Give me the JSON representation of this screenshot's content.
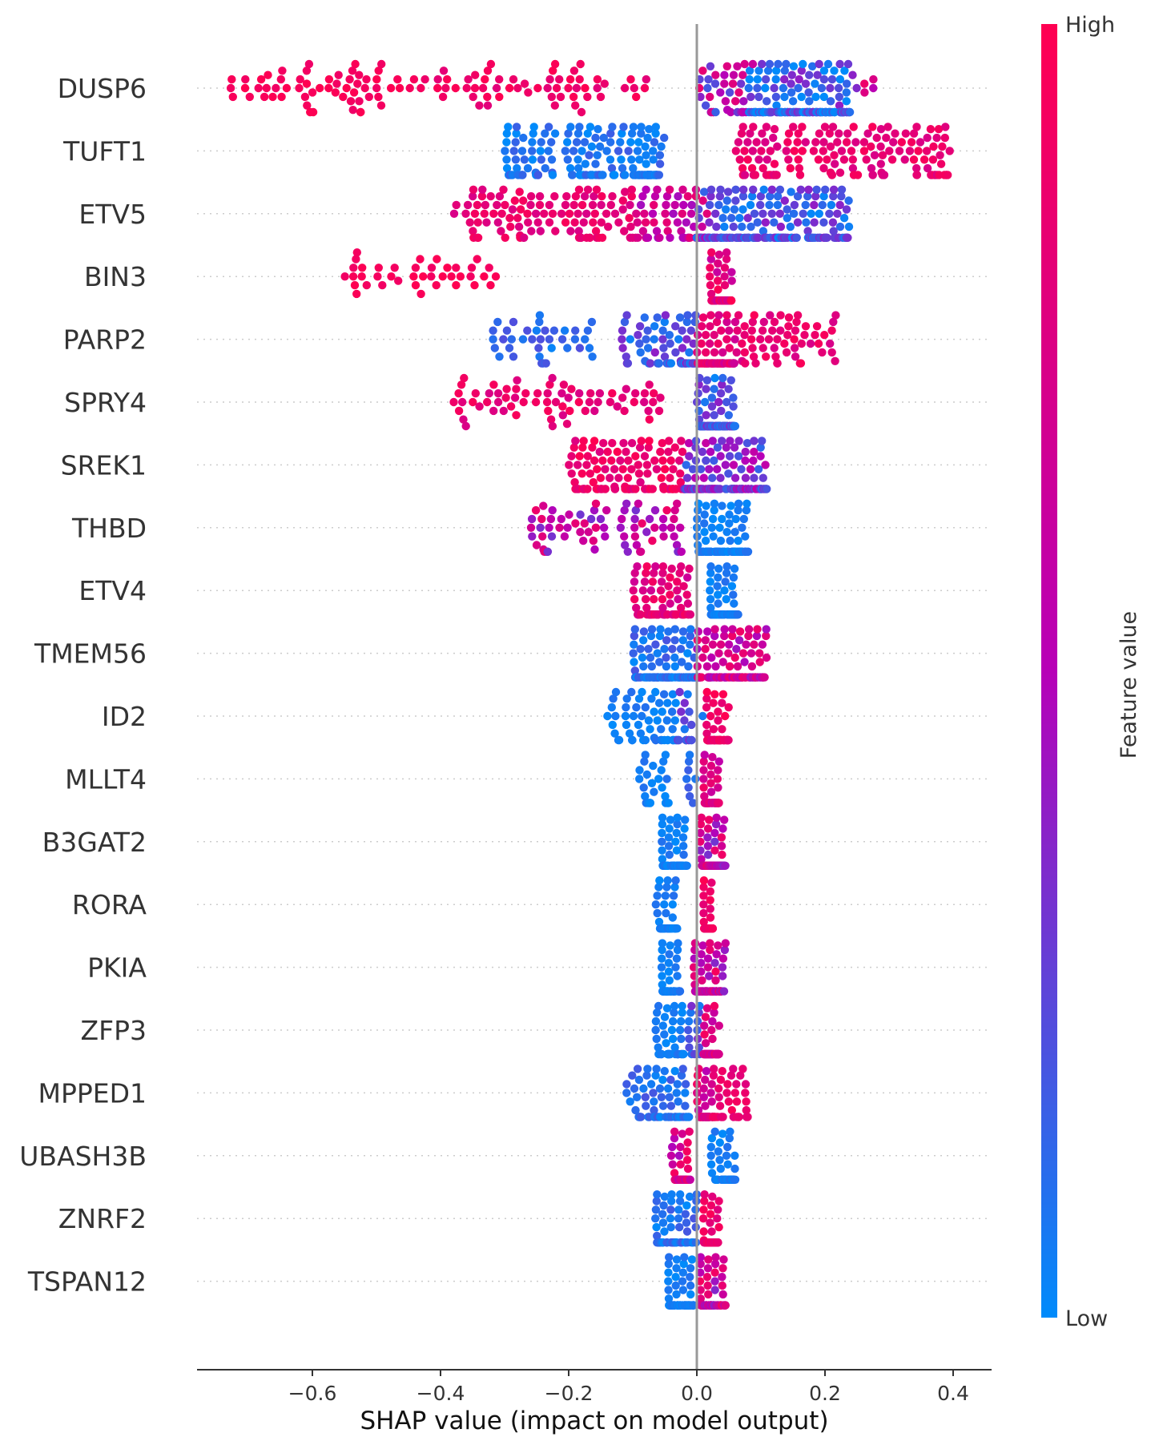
{
  "chart_data": {
    "type": "scatter",
    "subtype": "shap-beeswarm",
    "xlabel": "SHAP value (impact on model output)",
    "xlim": [
      -0.78,
      0.46
    ],
    "xticks": [
      -0.6,
      -0.4,
      -0.2,
      0.0,
      0.2,
      0.4
    ],
    "xtick_labels": [
      "−0.6",
      "−0.4",
      "−0.2",
      "0.0",
      "0.2",
      "0.4"
    ],
    "colorbar": {
      "label": "Feature value",
      "high_label": "High",
      "low_label": "Low",
      "low_color": "#008bfb",
      "high_color": "#ff0051",
      "mid_color": "#b700b7"
    },
    "zero_line_color": "#999999",
    "grid": false,
    "features": [
      {
        "name": "DUSP6",
        "segments": [
          {
            "x0": -0.73,
            "x1": -0.44,
            "n": 60,
            "fv": 0.95,
            "fvv": 0.06
          },
          {
            "x0": -0.44,
            "x1": -0.07,
            "n": 60,
            "fv": 0.9,
            "fvv": 0.1
          },
          {
            "x0": 0.0,
            "x1": 0.09,
            "n": 40,
            "fv": 0.5,
            "fvv": 0.35
          },
          {
            "x0": 0.08,
            "x1": 0.24,
            "n": 170,
            "fv": 0.15,
            "fvv": 0.25
          },
          {
            "x0": 0.24,
            "x1": 0.28,
            "n": 6,
            "fv": 0.6,
            "fvv": 0.3
          }
        ]
      },
      {
        "name": "TUFT1",
        "segments": [
          {
            "x0": -0.3,
            "x1": -0.05,
            "n": 140,
            "fv": 0.08,
            "fvv": 0.1
          },
          {
            "x0": -0.1,
            "x1": -0.06,
            "n": 40,
            "fv": 0.05,
            "fvv": 0.05
          },
          {
            "x0": 0.06,
            "x1": 0.4,
            "n": 150,
            "fv": 0.85,
            "fvv": 0.12
          }
        ]
      },
      {
        "name": "ETV5",
        "segments": [
          {
            "x0": -0.38,
            "x1": -0.1,
            "n": 110,
            "fv": 0.85,
            "fvv": 0.12
          },
          {
            "x0": -0.1,
            "x1": 0.02,
            "n": 60,
            "fv": 0.65,
            "fvv": 0.2
          },
          {
            "x0": 0.0,
            "x1": 0.24,
            "n": 220,
            "fv": 0.2,
            "fvv": 0.2
          }
        ]
      },
      {
        "name": "BIN3",
        "segments": [
          {
            "x0": -0.55,
            "x1": -0.31,
            "n": 40,
            "fv": 0.95,
            "fvv": 0.05
          },
          {
            "x0": 0.02,
            "x1": 0.055,
            "n": 80,
            "fv": 0.8,
            "fvv": 0.2
          }
        ]
      },
      {
        "name": "PARP2",
        "segments": [
          {
            "x0": -0.33,
            "x1": -0.16,
            "n": 40,
            "fv": 0.12,
            "fvv": 0.1
          },
          {
            "x0": -0.12,
            "x1": 0.0,
            "n": 80,
            "fv": 0.2,
            "fvv": 0.2
          },
          {
            "x0": 0.0,
            "x1": 0.06,
            "n": 110,
            "fv": 0.8,
            "fvv": 0.15
          },
          {
            "x0": 0.06,
            "x1": 0.22,
            "n": 60,
            "fv": 0.85,
            "fvv": 0.12
          }
        ]
      },
      {
        "name": "SPRY4",
        "segments": [
          {
            "x0": -0.38,
            "x1": -0.05,
            "n": 70,
            "fv": 0.85,
            "fvv": 0.12
          },
          {
            "x0": 0.0,
            "x1": 0.06,
            "n": 170,
            "fv": 0.2,
            "fvv": 0.2
          }
        ]
      },
      {
        "name": "SREK1",
        "segments": [
          {
            "x0": -0.2,
            "x1": -0.02,
            "n": 130,
            "fv": 0.88,
            "fvv": 0.12
          },
          {
            "x0": -0.02,
            "x1": 0.11,
            "n": 170,
            "fv": 0.35,
            "fvv": 0.25
          }
        ]
      },
      {
        "name": "THBD",
        "segments": [
          {
            "x0": -0.26,
            "x1": -0.14,
            "n": 40,
            "fv": 0.6,
            "fvv": 0.3
          },
          {
            "x0": -0.12,
            "x1": -0.02,
            "n": 35,
            "fv": 0.6,
            "fvv": 0.3
          },
          {
            "x0": 0.0,
            "x1": 0.08,
            "n": 120,
            "fv": 0.05,
            "fvv": 0.05
          }
        ]
      },
      {
        "name": "ETV4",
        "segments": [
          {
            "x0": -0.1,
            "x1": -0.01,
            "n": 90,
            "fv": 0.8,
            "fvv": 0.15
          },
          {
            "x0": 0.02,
            "x1": 0.065,
            "n": 110,
            "fv": 0.05,
            "fvv": 0.05
          }
        ]
      },
      {
        "name": "TMEM56",
        "segments": [
          {
            "x0": -0.1,
            "x1": 0.0,
            "n": 130,
            "fv": 0.1,
            "fvv": 0.1
          },
          {
            "x0": 0.0,
            "x1": 0.11,
            "n": 140,
            "fv": 0.65,
            "fvv": 0.25
          }
        ]
      },
      {
        "name": "ID2",
        "segments": [
          {
            "x0": -0.14,
            "x1": -0.03,
            "n": 60,
            "fv": 0.05,
            "fvv": 0.05
          },
          {
            "x0": -0.03,
            "x1": 0.01,
            "n": 20,
            "fv": 0.2,
            "fvv": 0.15
          },
          {
            "x0": 0.015,
            "x1": 0.05,
            "n": 80,
            "fv": 0.9,
            "fvv": 0.1
          }
        ]
      },
      {
        "name": "MLLT4",
        "segments": [
          {
            "x0": -0.09,
            "x1": -0.04,
            "n": 30,
            "fv": 0.05,
            "fvv": 0.05
          },
          {
            "x0": -0.02,
            "x1": 0.0,
            "n": 8,
            "fv": 0.1,
            "fvv": 0.08
          },
          {
            "x0": 0.01,
            "x1": 0.035,
            "n": 90,
            "fv": 0.75,
            "fvv": 0.2
          }
        ]
      },
      {
        "name": "B3GAT2",
        "segments": [
          {
            "x0": -0.055,
            "x1": -0.015,
            "n": 80,
            "fv": 0.05,
            "fvv": 0.05
          },
          {
            "x0": 0.005,
            "x1": 0.045,
            "n": 120,
            "fv": 0.6,
            "fvv": 0.3
          }
        ]
      },
      {
        "name": "RORA",
        "segments": [
          {
            "x0": -0.065,
            "x1": -0.03,
            "n": 50,
            "fv": 0.05,
            "fvv": 0.05
          },
          {
            "x0": 0.01,
            "x1": 0.025,
            "n": 60,
            "fv": 0.9,
            "fvv": 0.1
          }
        ]
      },
      {
        "name": "PKIA",
        "segments": [
          {
            "x0": -0.055,
            "x1": -0.025,
            "n": 80,
            "fv": 0.05,
            "fvv": 0.05
          },
          {
            "x0": -0.005,
            "x1": 0.045,
            "n": 120,
            "fv": 0.65,
            "fvv": 0.3
          }
        ]
      },
      {
        "name": "ZFP3",
        "segments": [
          {
            "x0": -0.065,
            "x1": -0.02,
            "n": 50,
            "fv": 0.05,
            "fvv": 0.05
          },
          {
            "x0": -0.015,
            "x1": 0.005,
            "n": 15,
            "fv": 0.2,
            "fvv": 0.15
          },
          {
            "x0": 0.01,
            "x1": 0.035,
            "n": 70,
            "fv": 0.75,
            "fvv": 0.2
          }
        ]
      },
      {
        "name": "MPPED1",
        "segments": [
          {
            "x0": -0.11,
            "x1": -0.01,
            "n": 70,
            "fv": 0.1,
            "fvv": 0.1
          },
          {
            "x0": 0.0,
            "x1": 0.025,
            "n": 70,
            "fv": 0.7,
            "fvv": 0.25
          },
          {
            "x0": 0.025,
            "x1": 0.08,
            "n": 40,
            "fv": 0.85,
            "fvv": 0.12
          }
        ]
      },
      {
        "name": "UBASH3B",
        "segments": [
          {
            "x0": -0.04,
            "x1": -0.01,
            "n": 60,
            "fv": 0.7,
            "fvv": 0.25
          },
          {
            "x0": 0.02,
            "x1": 0.06,
            "n": 60,
            "fv": 0.05,
            "fvv": 0.05
          }
        ]
      },
      {
        "name": "ZNRF2",
        "segments": [
          {
            "x0": -0.065,
            "x1": 0.0,
            "n": 70,
            "fv": 0.1,
            "fvv": 0.1
          },
          {
            "x0": 0.01,
            "x1": 0.035,
            "n": 80,
            "fv": 0.85,
            "fvv": 0.12
          }
        ]
      },
      {
        "name": "TSPAN12",
        "segments": [
          {
            "x0": -0.045,
            "x1": -0.005,
            "n": 110,
            "fv": 0.05,
            "fvv": 0.05
          },
          {
            "x0": 0.005,
            "x1": 0.045,
            "n": 110,
            "fv": 0.65,
            "fvv": 0.3
          }
        ]
      }
    ]
  }
}
